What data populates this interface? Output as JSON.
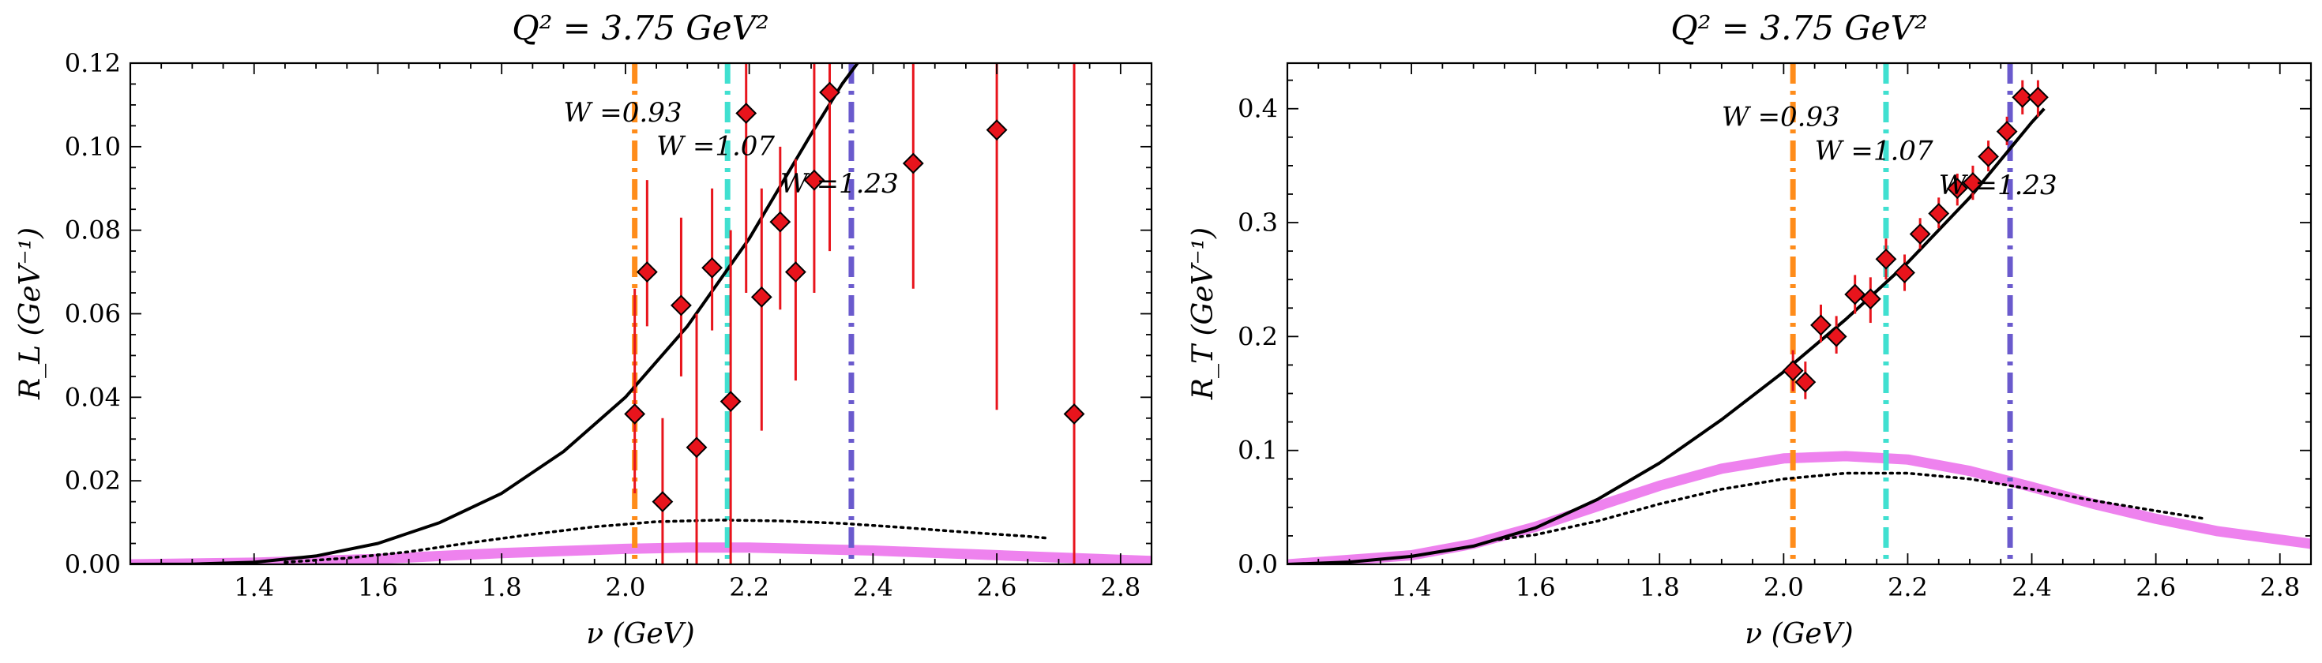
{
  "colors": {
    "marker": "#e8141c",
    "errorbar": "#e8141c",
    "model_solid": "#000000",
    "model_dotted": "#000000",
    "band": "#ee82ee",
    "w093": "#ff8c1a",
    "w107": "#40e0d0",
    "w123": "#6a5acd"
  },
  "chart_data": [
    {
      "type": "scatter",
      "title": "Q² = 3.75 GeV²",
      "xlabel": "ν (GeV)",
      "ylabel": "R_L (GeV⁻¹)",
      "xlim": [
        1.2,
        2.85
      ],
      "ylim": [
        0,
        0.12
      ],
      "xticks": [
        1.4,
        1.6,
        1.8,
        2.0,
        2.2,
        2.4,
        2.6,
        2.8
      ],
      "xtick_labels": [
        "1.4",
        "1.6",
        "1.8",
        "2.0",
        "2.2",
        "2.4",
        "2.6",
        "2.8"
      ],
      "yticks": [
        0,
        0.02,
        0.04,
        0.06,
        0.08,
        0.1,
        0.12
      ],
      "ytick_labels": [
        "0.00",
        "0.02",
        "0.04",
        "0.06",
        "0.08",
        "0.10",
        "0.12"
      ],
      "vlines": [
        {
          "x": 2.015,
          "label": "W =0.93",
          "color_key": "w093",
          "label_x": 1.9,
          "label_y": 0.106
        },
        {
          "x": 2.165,
          "label": "W =1.07",
          "color_key": "w107",
          "label_x": 2.05,
          "label_y": 0.098
        },
        {
          "x": 2.365,
          "label": "W =1.23",
          "color_key": "w123",
          "label_x": 2.25,
          "label_y": 0.089
        }
      ],
      "points": {
        "x": [
          2.015,
          2.035,
          2.06,
          2.09,
          2.115,
          2.14,
          2.17,
          2.195,
          2.22,
          2.25,
          2.275,
          2.305,
          2.33,
          2.465,
          2.6,
          2.725
        ],
        "y": [
          0.036,
          0.07,
          0.015,
          0.062,
          0.028,
          0.071,
          0.039,
          0.108,
          0.064,
          0.082,
          0.07,
          0.092,
          0.113,
          0.096,
          0.104,
          0.036
        ],
        "ylow": [
          0.017,
          0.057,
          0.0,
          0.045,
          0.0,
          0.056,
          0.0,
          0.065,
          0.032,
          0.061,
          0.044,
          0.065,
          0.075,
          0.066,
          0.037,
          0.0
        ],
        "yhigh": [
          0.066,
          0.092,
          0.035,
          0.083,
          0.06,
          0.09,
          0.08,
          0.12,
          0.09,
          0.1,
          0.097,
          0.12,
          0.12,
          0.12,
          0.12,
          0.12
        ]
      },
      "model_solid": {
        "x": [
          1.2,
          1.3,
          1.4,
          1.5,
          1.6,
          1.7,
          1.8,
          1.9,
          2.0,
          2.1,
          2.2,
          2.3,
          2.35,
          2.38
        ],
        "y": [
          0.0,
          5e-05,
          0.0005,
          0.002,
          0.005,
          0.01,
          0.017,
          0.027,
          0.04,
          0.057,
          0.078,
          0.103,
          0.115,
          0.121
        ]
      },
      "model_dotted": {
        "x": [
          1.45,
          1.55,
          1.65,
          1.75,
          1.85,
          1.95,
          2.05,
          2.15,
          2.25,
          2.35,
          2.45,
          2.55,
          2.65,
          2.68
        ],
        "y": [
          0.0005,
          0.0015,
          0.003,
          0.0052,
          0.0072,
          0.009,
          0.0102,
          0.0106,
          0.0104,
          0.0098,
          0.0088,
          0.0077,
          0.0067,
          0.0063
        ]
      },
      "band": {
        "x": [
          1.2,
          1.4,
          1.6,
          1.8,
          2.0,
          2.1,
          2.2,
          2.4,
          2.6,
          2.85
        ],
        "y": [
          0.0,
          0.0004,
          0.0013,
          0.0027,
          0.0037,
          0.004,
          0.004,
          0.0033,
          0.0022,
          0.0008
        ]
      }
    },
    {
      "type": "scatter",
      "title": "Q² = 3.75 GeV²",
      "xlabel": "ν (GeV)",
      "ylabel": "R_T (GeV⁻¹)",
      "xlim": [
        1.2,
        2.85
      ],
      "ylim": [
        0,
        0.44
      ],
      "xticks": [
        1.4,
        1.6,
        1.8,
        2.0,
        2.2,
        2.4,
        2.6,
        2.8
      ],
      "xtick_labels": [
        "1.4",
        "1.6",
        "1.8",
        "2.0",
        "2.2",
        "2.4",
        "2.6",
        "2.8"
      ],
      "yticks": [
        0,
        0.1,
        0.2,
        0.3,
        0.4
      ],
      "ytick_labels": [
        "0.0",
        "0.1",
        "0.2",
        "0.3",
        "0.4"
      ],
      "vlines": [
        {
          "x": 2.015,
          "label": "W =0.93",
          "color_key": "w093",
          "label_x": 1.9,
          "label_y": 0.385
        },
        {
          "x": 2.165,
          "label": "W =1.07",
          "color_key": "w107",
          "label_x": 2.05,
          "label_y": 0.355
        },
        {
          "x": 2.365,
          "label": "W =1.23",
          "color_key": "w123",
          "label_x": 2.25,
          "label_y": 0.325
        }
      ],
      "points": {
        "x": [
          2.015,
          2.035,
          2.06,
          2.085,
          2.115,
          2.14,
          2.165,
          2.195,
          2.22,
          2.25,
          2.28,
          2.305,
          2.33,
          2.36,
          2.385,
          2.41
        ],
        "y": [
          0.17,
          0.16,
          0.21,
          0.2,
          0.237,
          0.233,
          0.268,
          0.256,
          0.29,
          0.308,
          0.33,
          0.335,
          0.358,
          0.38,
          0.41,
          0.41
        ],
        "ylow": [
          0.152,
          0.145,
          0.195,
          0.185,
          0.22,
          0.212,
          0.25,
          0.24,
          0.277,
          0.295,
          0.315,
          0.32,
          0.345,
          0.368,
          0.395,
          0.393
        ],
        "yhigh": [
          0.188,
          0.178,
          0.228,
          0.218,
          0.254,
          0.252,
          0.286,
          0.272,
          0.304,
          0.322,
          0.343,
          0.35,
          0.372,
          0.393,
          0.425,
          0.425
        ]
      },
      "model_solid": {
        "x": [
          1.2,
          1.3,
          1.4,
          1.5,
          1.6,
          1.7,
          1.8,
          1.9,
          2.0,
          2.1,
          2.2,
          2.3,
          2.4,
          2.42
        ],
        "y": [
          0.0,
          0.002,
          0.007,
          0.016,
          0.032,
          0.057,
          0.089,
          0.127,
          0.169,
          0.215,
          0.265,
          0.322,
          0.388,
          0.4
        ]
      },
      "model_dotted": {
        "x": [
          1.53,
          1.6,
          1.7,
          1.8,
          1.9,
          2.0,
          2.1,
          2.2,
          2.3,
          2.4,
          2.5,
          2.6,
          2.68
        ],
        "y": [
          0.021,
          0.026,
          0.038,
          0.053,
          0.066,
          0.075,
          0.08,
          0.08,
          0.075,
          0.066,
          0.056,
          0.047,
          0.04
        ]
      },
      "band": {
        "x": [
          1.2,
          1.4,
          1.5,
          1.6,
          1.7,
          1.8,
          1.9,
          2.0,
          2.1,
          2.2,
          2.3,
          2.4,
          2.5,
          2.6,
          2.7,
          2.85
        ],
        "y": [
          0.0,
          0.008,
          0.018,
          0.033,
          0.051,
          0.069,
          0.084,
          0.093,
          0.095,
          0.092,
          0.082,
          0.068,
          0.053,
          0.04,
          0.029,
          0.018
        ]
      }
    }
  ]
}
